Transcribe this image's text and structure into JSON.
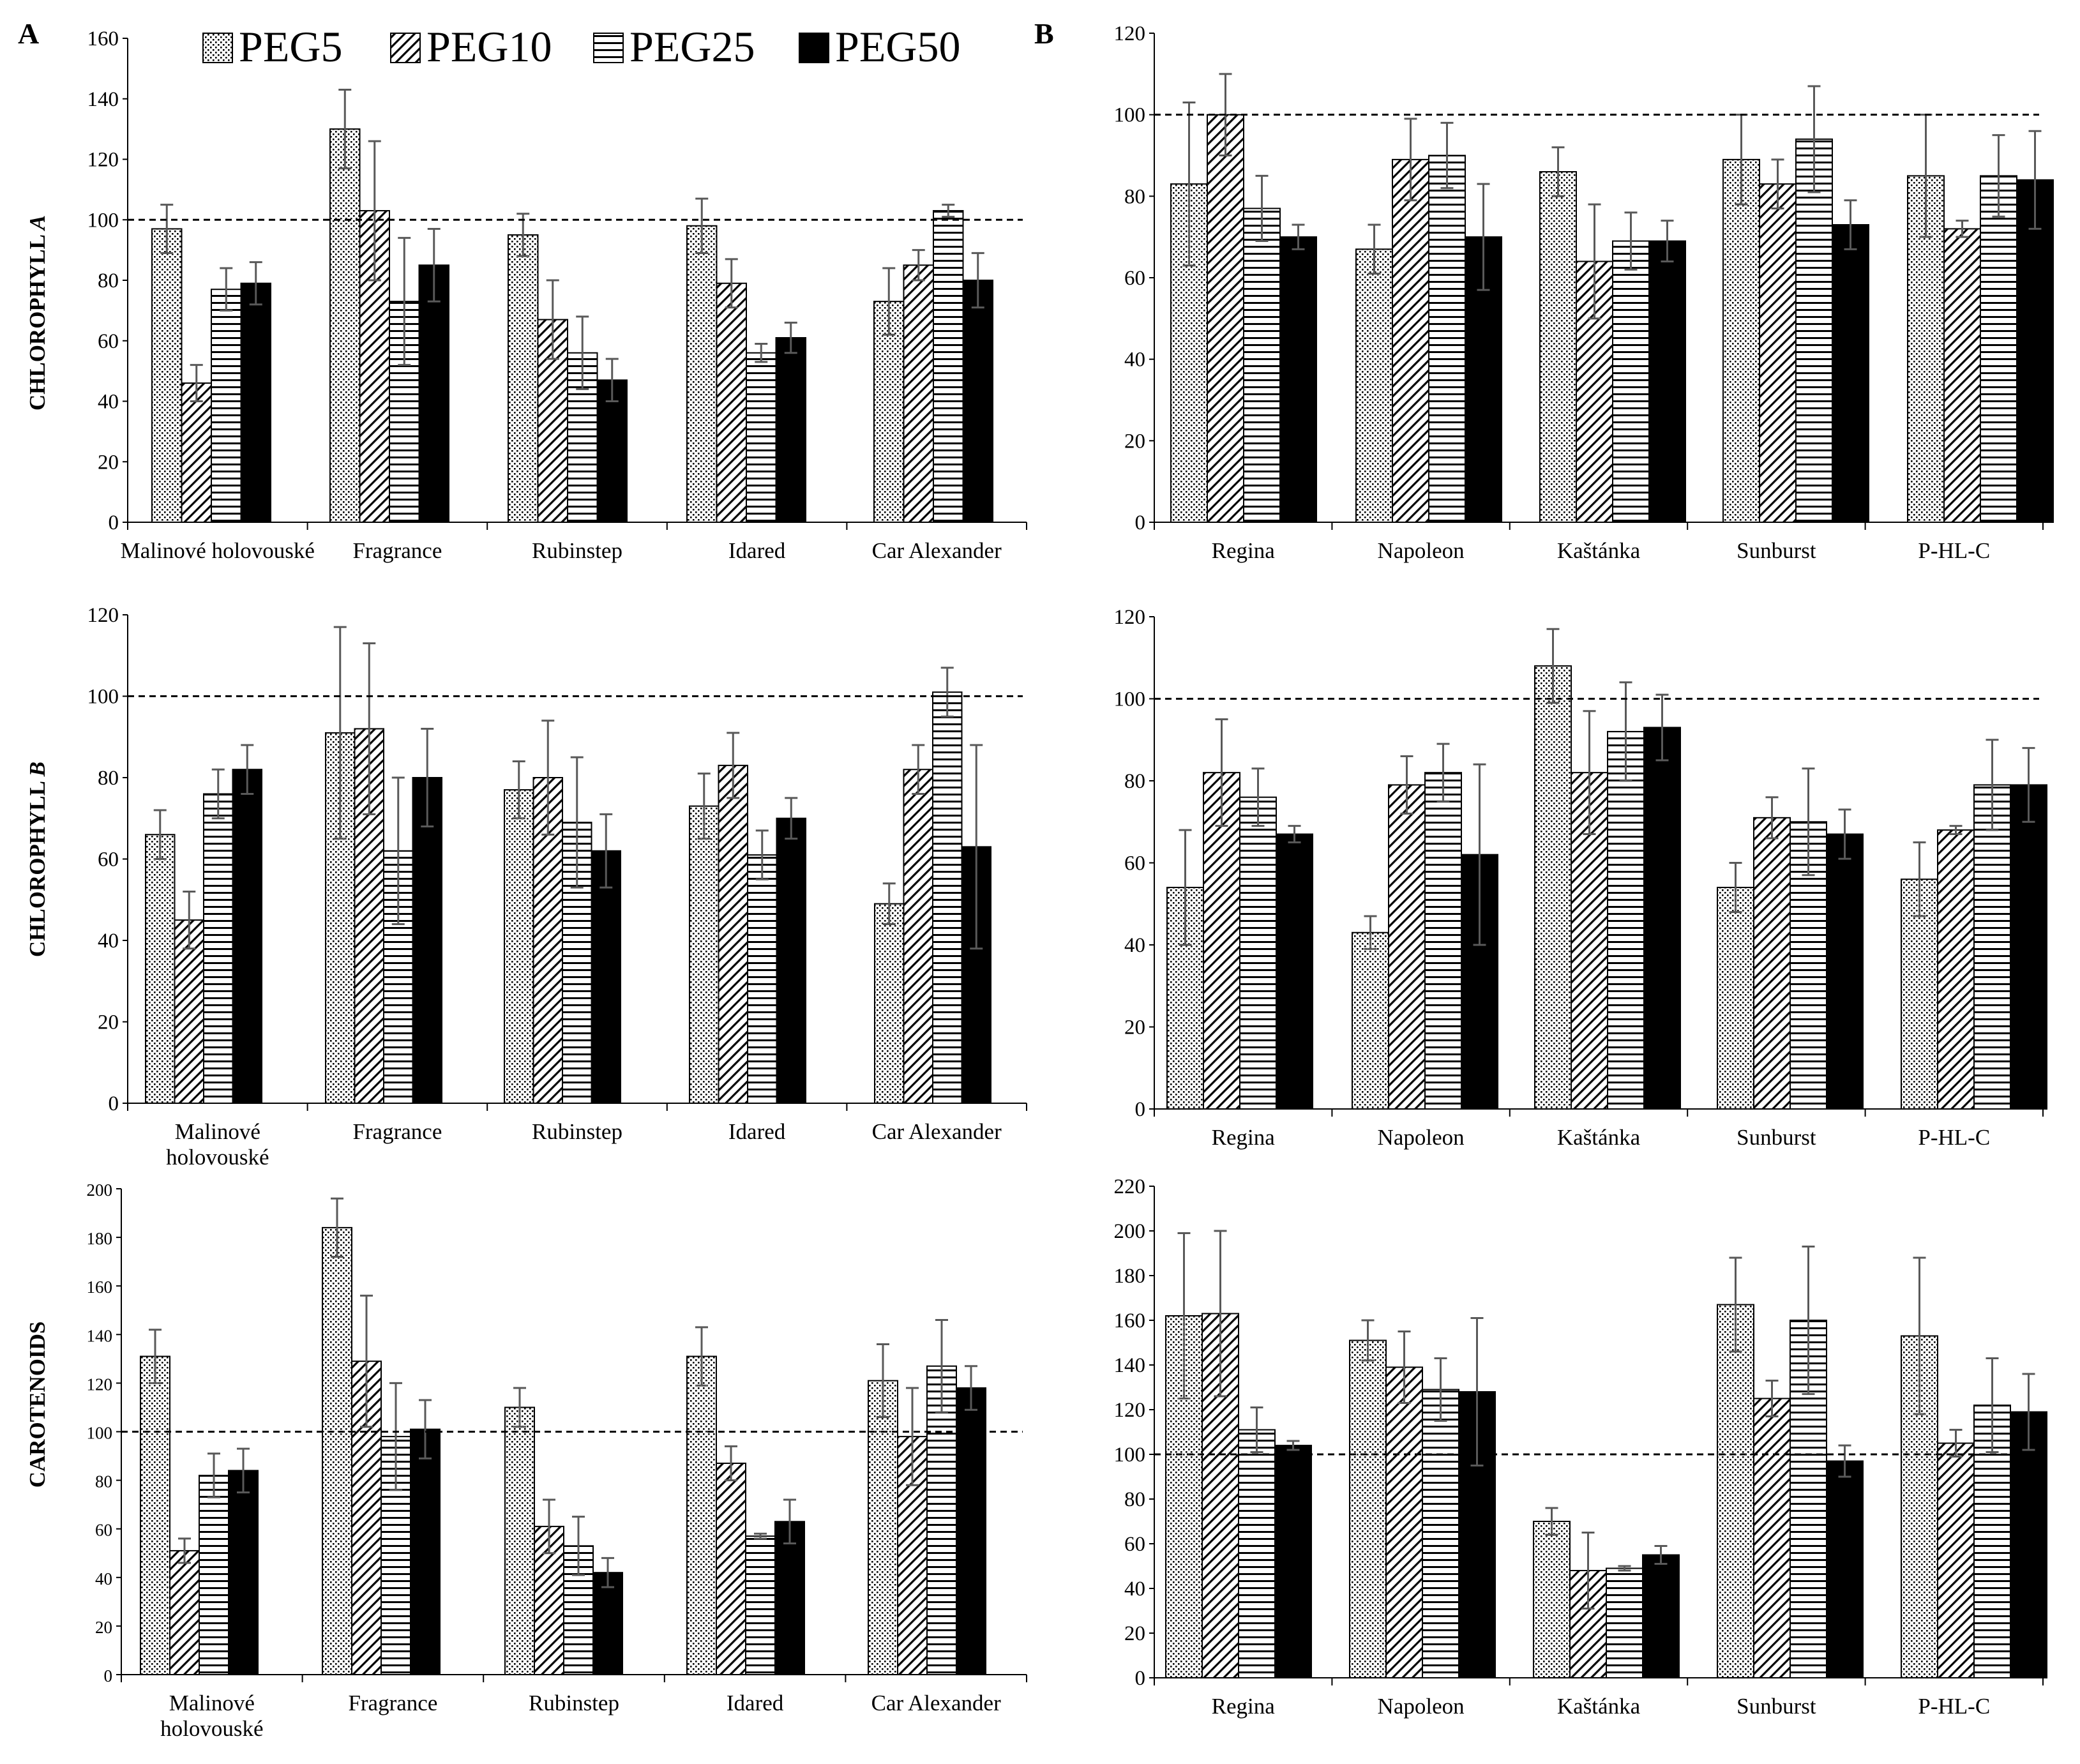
{
  "figure": {
    "panel_labels": [
      "A",
      "B"
    ],
    "legend": [
      {
        "name": "PEG5",
        "pattern": "dots"
      },
      {
        "name": "PEG10",
        "pattern": "diag"
      },
      {
        "name": "PEG25",
        "pattern": "hlines"
      },
      {
        "name": "PEG50",
        "pattern": "solid"
      }
    ],
    "colors": {
      "bar_outline": "#000000",
      "error_bar": "#595959",
      "axis": "#000000",
      "reference_line": "#000000",
      "background": "#ffffff"
    }
  },
  "chart_data": [
    {
      "id": "A1",
      "type": "bar",
      "panel": "A",
      "ylabel_parts": [
        "CHLOROPHYLL ",
        "A"
      ],
      "ylim": [
        0,
        160
      ],
      "yticks": [
        0,
        20,
        40,
        60,
        80,
        100,
        120,
        140,
        160
      ],
      "reference_line": 100,
      "categories": [
        [
          "Malinové holovouské"
        ],
        [
          "Fragrance"
        ],
        [
          "Rubinstep"
        ],
        [
          "Idared"
        ],
        [
          "Car Alexander"
        ]
      ],
      "series": [
        {
          "name": "PEG5",
          "values": [
            97,
            130,
            95,
            98,
            73
          ],
          "errors": [
            8,
            13,
            7,
            9,
            11
          ]
        },
        {
          "name": "PEG10",
          "values": [
            46,
            103,
            67,
            79,
            85
          ],
          "errors": [
            6,
            23,
            13,
            8,
            5
          ]
        },
        {
          "name": "PEG25",
          "values": [
            77,
            73,
            56,
            56,
            103
          ],
          "errors": [
            7,
            21,
            12,
            3,
            2
          ]
        },
        {
          "name": "PEG50",
          "values": [
            79,
            85,
            47,
            61,
            80
          ],
          "errors": [
            7,
            12,
            7,
            5,
            9
          ]
        }
      ]
    },
    {
      "id": "B1",
      "type": "bar",
      "panel": "B",
      "ylim": [
        0,
        120
      ],
      "yticks": [
        0,
        20,
        40,
        60,
        80,
        100,
        120
      ],
      "reference_line": 100,
      "categories": [
        [
          "Regina"
        ],
        [
          "Napoleon"
        ],
        [
          "Kaštánka"
        ],
        [
          "Sunburst"
        ],
        [
          "P-HL-C"
        ]
      ],
      "series": [
        {
          "name": "PEG5",
          "values": [
            83,
            67,
            86,
            89,
            85
          ],
          "errors": [
            20,
            6,
            6,
            11,
            15
          ]
        },
        {
          "name": "PEG10",
          "values": [
            100,
            89,
            64,
            83,
            72
          ],
          "errors": [
            10,
            10,
            14,
            6,
            2
          ]
        },
        {
          "name": "PEG25",
          "values": [
            77,
            90,
            69,
            94,
            85
          ],
          "errors": [
            8,
            8,
            7,
            13,
            10
          ]
        },
        {
          "name": "PEG50",
          "values": [
            70,
            70,
            69,
            73,
            84
          ],
          "errors": [
            3,
            13,
            5,
            6,
            12
          ]
        }
      ]
    },
    {
      "id": "A2",
      "type": "bar",
      "panel": "A",
      "ylabel_parts": [
        "CHLOROPHYLL ",
        "B"
      ],
      "ylim": [
        0,
        120
      ],
      "yticks": [
        0,
        20,
        40,
        60,
        80,
        100,
        120
      ],
      "reference_line": 100,
      "categories": [
        [
          "Malinové",
          "holovouské"
        ],
        [
          "Fragrance"
        ],
        [
          "Rubinstep"
        ],
        [
          "Idared"
        ],
        [
          "Car Alexander"
        ]
      ],
      "series": [
        {
          "name": "PEG5",
          "values": [
            66,
            91,
            77,
            73,
            49
          ],
          "errors": [
            6,
            26,
            7,
            8,
            5
          ]
        },
        {
          "name": "PEG10",
          "values": [
            45,
            92,
            80,
            83,
            82
          ],
          "errors": [
            7,
            21,
            14,
            8,
            6
          ]
        },
        {
          "name": "PEG25",
          "values": [
            76,
            62,
            69,
            61,
            101
          ],
          "errors": [
            6,
            18,
            16,
            6,
            6
          ]
        },
        {
          "name": "PEG50",
          "values": [
            82,
            80,
            62,
            70,
            63
          ],
          "errors": [
            6,
            12,
            9,
            5,
            25
          ]
        }
      ]
    },
    {
      "id": "B2",
      "type": "bar",
      "panel": "B",
      "ylim": [
        0,
        120
      ],
      "yticks": [
        0,
        20,
        40,
        60,
        80,
        100,
        120
      ],
      "reference_line": 100,
      "categories": [
        [
          "Regina"
        ],
        [
          "Napoleon"
        ],
        [
          "Kaštánka"
        ],
        [
          "Sunburst"
        ],
        [
          "P-HL-C"
        ]
      ],
      "series": [
        {
          "name": "PEG5",
          "values": [
            54,
            43,
            108,
            54,
            56
          ],
          "errors": [
            14,
            4,
            9,
            6,
            9
          ]
        },
        {
          "name": "PEG10",
          "values": [
            82,
            79,
            82,
            71,
            68
          ],
          "errors": [
            13,
            7,
            15,
            5,
            1
          ]
        },
        {
          "name": "PEG25",
          "values": [
            76,
            82,
            92,
            70,
            79
          ],
          "errors": [
            7,
            7,
            12,
            13,
            11
          ]
        },
        {
          "name": "PEG50",
          "values": [
            67,
            62,
            93,
            67,
            79
          ],
          "errors": [
            2,
            22,
            8,
            6,
            9
          ]
        }
      ]
    },
    {
      "id": "A3",
      "type": "bar",
      "panel": "A",
      "ylabel_parts": [
        "CAROTENOIDS",
        ""
      ],
      "ylim": [
        0,
        200
      ],
      "yticks": [
        0,
        20,
        40,
        60,
        80,
        100,
        120,
        140,
        160,
        180,
        200
      ],
      "reference_line": 100,
      "categories": [
        [
          "Malinové",
          "holovouské"
        ],
        [
          "Fragrance"
        ],
        [
          "Rubinstep"
        ],
        [
          "Idared"
        ],
        [
          "Car Alexander"
        ]
      ],
      "series": [
        {
          "name": "PEG5",
          "values": [
            131,
            184,
            110,
            131,
            121
          ],
          "errors": [
            11,
            12,
            8,
            12,
            15
          ]
        },
        {
          "name": "PEG10",
          "values": [
            51,
            129,
            61,
            87,
            98
          ],
          "errors": [
            5,
            27,
            11,
            7,
            20
          ]
        },
        {
          "name": "PEG25",
          "values": [
            82,
            98,
            53,
            57,
            127
          ],
          "errors": [
            9,
            22,
            12,
            1,
            19
          ]
        },
        {
          "name": "PEG50",
          "values": [
            84,
            101,
            42,
            63,
            118
          ],
          "errors": [
            9,
            12,
            6,
            9,
            9
          ]
        }
      ]
    },
    {
      "id": "B3",
      "type": "bar",
      "panel": "B",
      "ylim": [
        0,
        220
      ],
      "yticks": [
        0,
        20,
        40,
        60,
        80,
        100,
        120,
        140,
        160,
        180,
        200,
        220
      ],
      "reference_line": 100,
      "categories": [
        [
          "Regina"
        ],
        [
          "Napoleon"
        ],
        [
          "Kaštánka"
        ],
        [
          "Sunburst"
        ],
        [
          "P-HL-C"
        ]
      ],
      "series": [
        {
          "name": "PEG5",
          "values": [
            162,
            151,
            70,
            167,
            153
          ],
          "errors": [
            37,
            9,
            6,
            21,
            35
          ]
        },
        {
          "name": "PEG10",
          "values": [
            163,
            139,
            48,
            125,
            105
          ],
          "errors": [
            37,
            16,
            17,
            8,
            6
          ]
        },
        {
          "name": "PEG25",
          "values": [
            111,
            129,
            49,
            160,
            122
          ],
          "errors": [
            10,
            14,
            1,
            33,
            21
          ]
        },
        {
          "name": "PEG50",
          "values": [
            104,
            128,
            55,
            97,
            119
          ],
          "errors": [
            2,
            33,
            4,
            7,
            17
          ]
        }
      ]
    }
  ]
}
